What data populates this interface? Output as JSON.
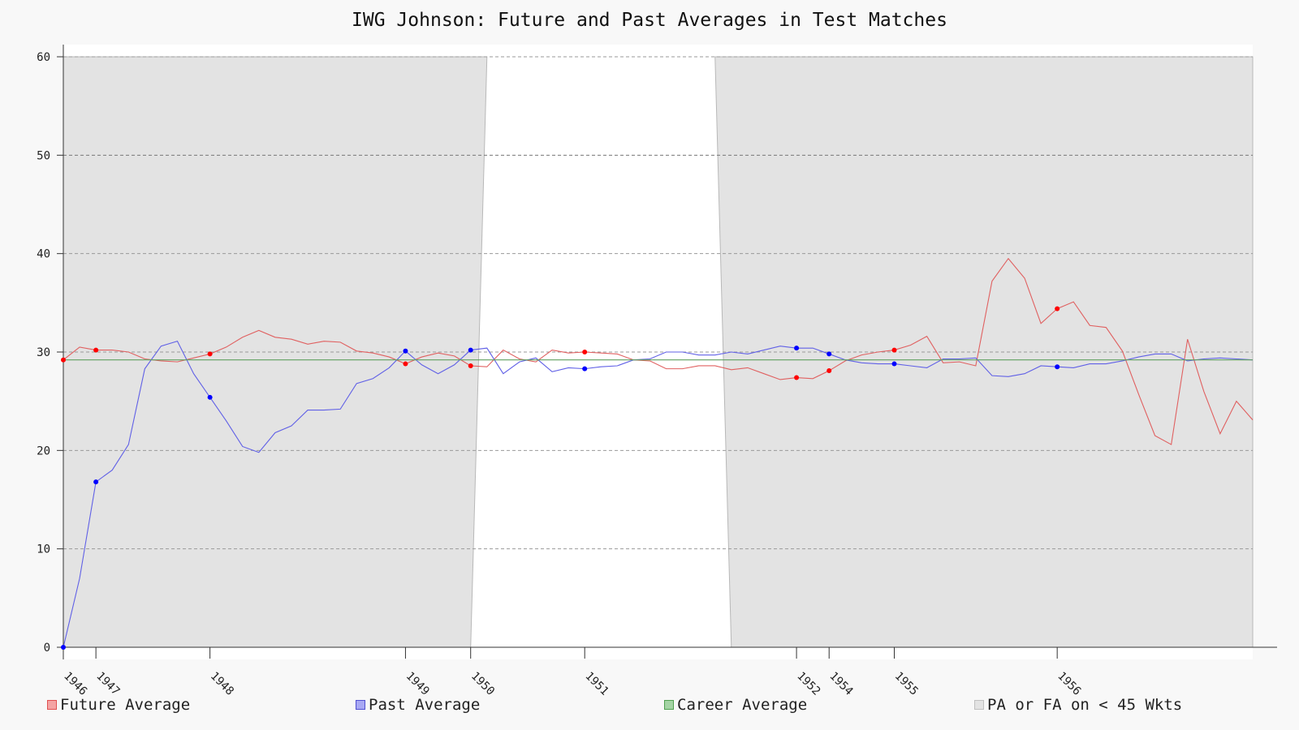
{
  "chart_data": {
    "type": "line",
    "title": "IWG Johnson: Future and Past Averages in Test Matches",
    "xlabel": "",
    "ylabel": "",
    "ylim": [
      0,
      60
    ],
    "y_ticks": [
      "0",
      "10",
      "20",
      "30",
      "40",
      "50",
      "60"
    ],
    "x_index_range": [
      0,
      73
    ],
    "grid": "horizontal dashed",
    "legend_position": "bottom",
    "x_tick_labels": [
      {
        "index": 0,
        "label": "1946"
      },
      {
        "index": 2,
        "label": "1947"
      },
      {
        "index": 9,
        "label": "1948"
      },
      {
        "index": 21,
        "label": "1949"
      },
      {
        "index": 25,
        "label": "1950"
      },
      {
        "index": 32,
        "label": "1951"
      },
      {
        "index": 45,
        "label": "1952"
      },
      {
        "index": 47,
        "label": "1954"
      },
      {
        "index": 51,
        "label": "1955"
      },
      {
        "index": 61,
        "label": "1956"
      }
    ],
    "series": [
      {
        "name": "Future Average",
        "color": "#e06060",
        "marker_color": "#ff0000",
        "values": [
          29.2,
          30.5,
          30.2,
          30.2,
          30.0,
          29.3,
          29.1,
          29.0,
          29.4,
          29.8,
          30.5,
          31.5,
          32.2,
          31.5,
          31.3,
          30.8,
          31.1,
          31.0,
          30.1,
          29.9,
          29.5,
          28.8,
          29.5,
          29.9,
          29.6,
          28.6,
          28.5,
          30.2,
          29.3,
          29.0,
          30.2,
          29.9,
          30.0,
          29.9,
          29.8,
          29.2,
          29.1,
          28.3,
          28.3,
          28.6,
          28.6,
          28.2,
          28.4,
          27.8,
          27.2,
          27.4,
          27.3,
          28.1,
          29.1,
          29.7,
          30.0,
          30.2,
          30.7,
          31.6,
          28.9,
          29.0,
          28.6,
          37.2,
          39.5,
          37.5,
          32.9,
          34.4,
          35.1,
          32.7,
          32.5,
          30.1,
          25.7,
          21.5,
          20.6,
          31.3,
          26.0,
          21.7,
          25.0,
          23.1
        ],
        "marked_points": [
          0,
          2,
          9,
          21,
          25,
          32,
          45,
          47,
          51,
          61
        ]
      },
      {
        "name": "Past Average",
        "color": "#6060e6",
        "marker_color": "#0000ff",
        "values": [
          0.0,
          7.0,
          16.8,
          18.0,
          20.6,
          28.3,
          30.6,
          31.1,
          27.8,
          25.4,
          23.0,
          20.4,
          19.8,
          21.8,
          22.5,
          24.1,
          24.1,
          24.2,
          26.8,
          27.3,
          28.4,
          30.1,
          28.7,
          27.8,
          28.7,
          30.2,
          30.4,
          27.8,
          29.0,
          29.4,
          28.0,
          28.4,
          28.3,
          28.5,
          28.6,
          29.2,
          29.3,
          30.0,
          30.0,
          29.7,
          29.7,
          30.0,
          29.8,
          30.2,
          30.6,
          30.4,
          30.4,
          29.8,
          29.2,
          28.9,
          28.8,
          28.8,
          28.6,
          28.4,
          29.3,
          29.3,
          29.4,
          27.6,
          27.5,
          27.8,
          28.6,
          28.5,
          28.4,
          28.8,
          28.8,
          29.1,
          29.5,
          29.8,
          29.8,
          29.1,
          29.3,
          29.4,
          29.3,
          29.2
        ],
        "marked_points": [
          0,
          2,
          9,
          21,
          25,
          32,
          45,
          47,
          51,
          61
        ]
      },
      {
        "name": "Career Average",
        "color": "#60a060",
        "values_constant": 29.2
      }
    ],
    "shaded_region": {
      "name": "PA or FA on < 45 Wkts",
      "color": "#e3e3e3",
      "description_points": [
        [
          0,
          0
        ],
        [
          0,
          60
        ],
        [
          26,
          60
        ],
        [
          25,
          0
        ],
        [
          41,
          0
        ],
        [
          40,
          60
        ],
        [
          73,
          60
        ],
        [
          73,
          0
        ]
      ]
    }
  },
  "legend": {
    "future": "Future Average",
    "past": "Past Average",
    "career": "Career Average",
    "shade": "PA or FA on < 45 Wkts"
  },
  "colors": {
    "future_swatch_fill": "#f4a4a4",
    "future_swatch_border": "#e05050",
    "past_swatch_fill": "#a8a8f4",
    "past_swatch_border": "#5050d0",
    "career_swatch_fill": "#a4d4a4",
    "career_swatch_border": "#50a050",
    "shade_swatch_fill": "#e3e3e3",
    "shade_swatch_border": "#c0c0c0"
  }
}
